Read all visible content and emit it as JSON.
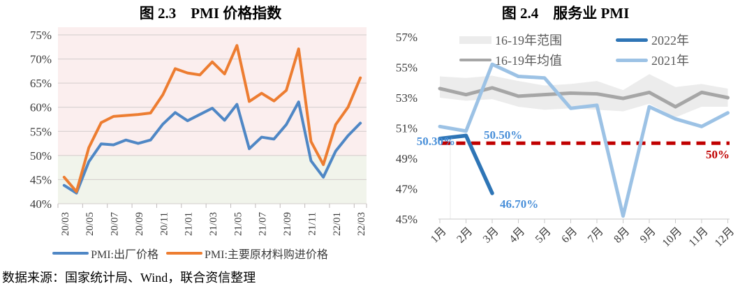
{
  "figure": {
    "source_note": "数据来源：国家统计局、Wind，联合资信整理"
  },
  "chart_data": [
    {
      "id": "pmi-price-index",
      "type": "line",
      "title": "图 2.3　PMI 价格指数",
      "categories": [
        "20/03",
        "20/04",
        "20/05",
        "20/06",
        "20/07",
        "20/08",
        "20/09",
        "20/10",
        "20/11",
        "20/12",
        "21/01",
        "21/02",
        "21/03",
        "21/04",
        "21/05",
        "21/06",
        "21/07",
        "21/08",
        "21/09",
        "21/10",
        "21/11",
        "21/12",
        "22/01",
        "22/02",
        "22/03"
      ],
      "x_tick_labels": [
        "20/03",
        "20/05",
        "20/07",
        "20/09",
        "20/11",
        "21/01",
        "21/03",
        "21/05",
        "21/07",
        "21/09",
        "21/11",
        "22/01",
        "22/03"
      ],
      "y_ticks": [
        75,
        70,
        65,
        60,
        55,
        50,
        45,
        40
      ],
      "y_tick_suffix": "%",
      "ylim": [
        40,
        75
      ],
      "threshold": 50,
      "plot_bg_above_50": "#FBEEEE",
      "plot_bg_below_50": "#F1F4EB",
      "grid_color": "#D2CCCB",
      "series": [
        {
          "name": "PMI:出厂价格",
          "color": "#4F87C5",
          "values": [
            43.8,
            42.2,
            48.7,
            52.4,
            52.2,
            53.2,
            52.5,
            53.2,
            56.5,
            58.9,
            57.2,
            58.5,
            59.8,
            57.3,
            60.6,
            51.4,
            53.8,
            53.4,
            56.4,
            61.1,
            48.9,
            45.5,
            50.9,
            54.1,
            56.7
          ]
        },
        {
          "name": "PMI:主要原材料购进价格",
          "color": "#ED7D31",
          "values": [
            45.5,
            42.5,
            51.6,
            56.8,
            58.1,
            58.3,
            58.5,
            58.8,
            62.6,
            68.0,
            67.1,
            66.7,
            69.4,
            66.9,
            72.8,
            61.2,
            62.9,
            61.3,
            63.5,
            72.1,
            52.9,
            48.1,
            56.4,
            60.0,
            66.1
          ]
        }
      ]
    },
    {
      "id": "services-pmi",
      "type": "line",
      "title": "图 2.4　服务业 PMI",
      "categories": [
        "1月",
        "2月",
        "3月",
        "4月",
        "5月",
        "6月",
        "7月",
        "8月",
        "9月",
        "10月",
        "11月",
        "12月"
      ],
      "y_ticks": [
        57,
        55,
        53,
        51,
        49,
        47,
        45
      ],
      "y_tick_suffix": "%",
      "ylim": [
        45,
        57
      ],
      "band": {
        "name": "16-19年范围",
        "color": "#ECECEC",
        "upper": [
          54.4,
          54.3,
          54.45,
          54.1,
          53.8,
          53.9,
          54.1,
          53.5,
          54.55,
          53.7,
          53.9,
          53.6
        ],
        "lower": [
          53.0,
          52.8,
          52.9,
          52.4,
          52.2,
          52.3,
          52.2,
          52.1,
          52.6,
          51.7,
          52.4,
          52.4
        ]
      },
      "series": [
        {
          "name": "16-19年均值",
          "color": "#A6A6A6",
          "values": [
            53.6,
            53.2,
            53.65,
            53.1,
            53.2,
            53.3,
            53.25,
            52.95,
            53.35,
            52.4,
            53.35,
            53.0
          ]
        },
        {
          "name": "2022年",
          "color": "#2E75B6",
          "values": [
            50.3,
            50.5,
            46.7
          ]
        },
        {
          "name": "2021年",
          "color": "#9CC2E5",
          "values": [
            51.1,
            50.8,
            55.2,
            54.4,
            54.3,
            52.3,
            52.5,
            45.2,
            52.4,
            51.6,
            51.1,
            52.0
          ]
        }
      ],
      "reference_line": {
        "value": 50,
        "label": "50%",
        "color": "#C00000"
      },
      "annotation_color": "#4A90D9",
      "annotations": [
        {
          "text": "50.30%",
          "series": "2022年",
          "month": "1月"
        },
        {
          "text": "50.50%",
          "series": "2022年",
          "month": "2月"
        },
        {
          "text": "46.70%",
          "series": "2022年",
          "month": "3月"
        }
      ]
    }
  ]
}
